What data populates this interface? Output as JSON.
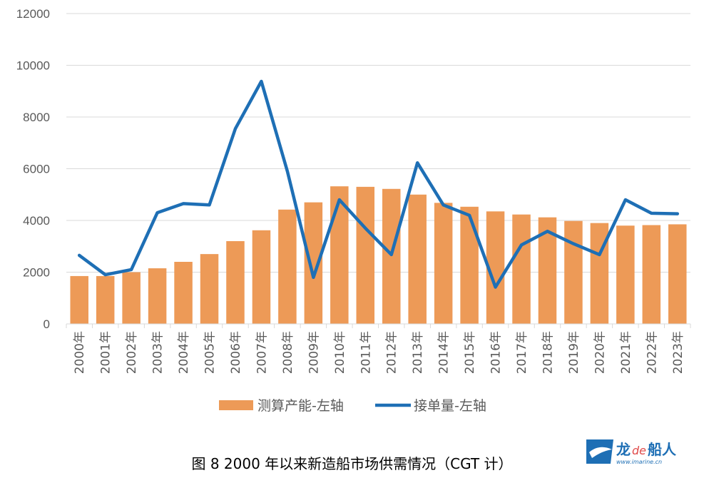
{
  "caption": "图 8 2000 年以来新造船市场供需情况（CGT 计）",
  "logo": {
    "text_primary": "龙de船人",
    "text_secondary": "www.imarine.cn"
  },
  "colors": {
    "bar": "#ED9A57",
    "line": "#1E6FB5",
    "grid": "#D9D9D9",
    "axis_text": "#595959"
  },
  "chart_data": {
    "type": "bar+line",
    "categories": [
      "2000年",
      "2001年",
      "2002年",
      "2003年",
      "2004年",
      "2005年",
      "2006年",
      "2007年",
      "2008年",
      "2009年",
      "2010年",
      "2011年",
      "2012年",
      "2013年",
      "2014年",
      "2015年",
      "2016年",
      "2017年",
      "2018年",
      "2019年",
      "2020年",
      "2021年",
      "2022年",
      "2023年"
    ],
    "series": [
      {
        "name": "测算产能-左轴",
        "kind": "bar",
        "values": [
          1850,
          1850,
          2000,
          2150,
          2400,
          2700,
          3200,
          3620,
          4420,
          4700,
          5320,
          5300,
          5220,
          5000,
          4680,
          4530,
          4350,
          4230,
          4120,
          3980,
          3900,
          3800,
          3820,
          3850
        ]
      },
      {
        "name": "接单量-左轴",
        "kind": "line",
        "values": [
          2650,
          1900,
          2100,
          4300,
          4650,
          4600,
          7550,
          9380,
          5900,
          1800,
          4800,
          3700,
          2680,
          6230,
          4600,
          4200,
          1420,
          3050,
          3580,
          3100,
          2680,
          4800,
          4280,
          4260
        ]
      }
    ],
    "ylim": [
      0,
      12000
    ],
    "yticks": [
      0,
      2000,
      4000,
      6000,
      8000,
      10000,
      12000
    ],
    "grid": true,
    "legend": "bottom"
  }
}
